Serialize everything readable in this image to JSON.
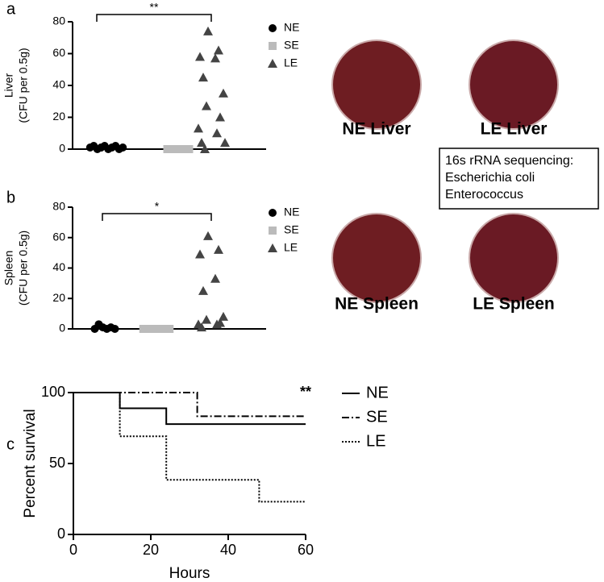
{
  "panel_labels": [
    "a",
    "b",
    "c"
  ],
  "plates": [
    {
      "label": "NE Liver",
      "color": "#6e1d22"
    },
    {
      "label": "LE Liver",
      "color": "#6a1a24"
    },
    {
      "label": "NE Spleen",
      "color": "#6e1d22"
    },
    {
      "label": "LE Spleen",
      "color": "#6a1a24"
    }
  ],
  "note": [
    "16s rRNA sequencing:",
    "Escherichia coli",
    "Enterococcus"
  ],
  "chart_data": [
    {
      "type": "strip",
      "ylabel": [
        "Liver",
        "(CFU per 0.5g)"
      ],
      "ylim": [
        0,
        80
      ],
      "yticks": [
        0,
        20,
        40,
        60,
        80
      ],
      "annotation": "**",
      "series": [
        {
          "name": "NE",
          "color": "#000000",
          "marker": "circle",
          "values": [
            1,
            2,
            0,
            1,
            2,
            0,
            1,
            2,
            0,
            1
          ]
        },
        {
          "name": "SE",
          "color": "#bbbbbb",
          "marker": "square",
          "values": [
            0,
            0,
            0,
            0
          ]
        },
        {
          "name": "LE",
          "color": "#444444",
          "marker": "triangle",
          "values": [
            74,
            62,
            58,
            57,
            45,
            35,
            27,
            20,
            13,
            10,
            4,
            4,
            0
          ]
        }
      ]
    },
    {
      "type": "strip",
      "ylabel": [
        "Spleen",
        "(CFU per 0.5g)"
      ],
      "ylim": [
        0,
        80
      ],
      "yticks": [
        0,
        20,
        40,
        60,
        80
      ],
      "annotation": "*",
      "series": [
        {
          "name": "NE",
          "color": "#000000",
          "marker": "circle",
          "values": [
            0,
            3,
            1,
            0,
            1,
            0
          ]
        },
        {
          "name": "SE",
          "color": "#bbbbbb",
          "marker": "square",
          "values": [
            0,
            0,
            0,
            0,
            0,
            0
          ]
        },
        {
          "name": "LE",
          "color": "#444444",
          "marker": "triangle",
          "values": [
            61,
            52,
            49,
            33,
            25,
            8,
            6,
            4,
            3,
            3,
            1
          ]
        }
      ]
    },
    {
      "type": "step",
      "xlabel": "Hours",
      "ylabel": "Percent survival",
      "xlim": [
        0,
        60
      ],
      "xticks": [
        0,
        20,
        40,
        60
      ],
      "ylim": [
        0,
        100
      ],
      "yticks": [
        0,
        50,
        100
      ],
      "annotation": "**",
      "series": [
        {
          "name": "NE",
          "color": "#000000",
          "dash": "none",
          "x": [
            0,
            12,
            24,
            60
          ],
          "values": [
            100,
            88.9,
            77.8,
            77.8
          ]
        },
        {
          "name": "SE",
          "color": "#000000",
          "dash": "9 3 2 3",
          "x": [
            0,
            32,
            60
          ],
          "values": [
            100,
            83.3,
            83.3
          ]
        },
        {
          "name": "LE",
          "color": "#000000",
          "dash": "2 2",
          "x": [
            0,
            12,
            24,
            48,
            60
          ],
          "values": [
            100,
            69.2,
            38.5,
            23.1,
            23.1
          ]
        }
      ]
    }
  ]
}
